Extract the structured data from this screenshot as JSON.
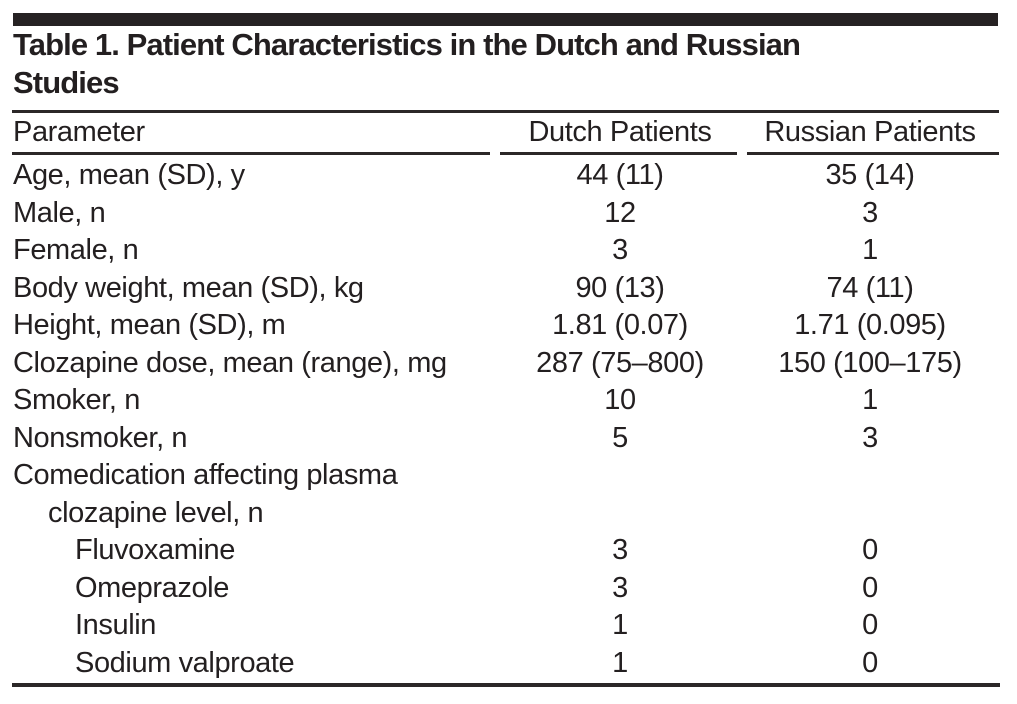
{
  "title": {
    "line1": "Table 1. Patient Characteristics in the Dutch and Russian",
    "line2": "Studies"
  },
  "columns": {
    "parameter": "Parameter",
    "dutch": "Dutch Patients",
    "russian": "Russian Patients"
  },
  "table": {
    "rows": [
      {
        "label": "Age, mean (SD), y",
        "indent": 0,
        "dutch": "44 (11)",
        "russian": "35 (14)"
      },
      {
        "label": "Male, n",
        "indent": 0,
        "dutch": "12",
        "russian": "3"
      },
      {
        "label": "Female, n",
        "indent": 0,
        "dutch": "3",
        "russian": "1"
      },
      {
        "label": "Body weight, mean (SD), kg",
        "indent": 0,
        "dutch": "90 (13)",
        "russian": "74 (11)"
      },
      {
        "label": "Height, mean (SD), m",
        "indent": 0,
        "dutch": "1.81 (0.07)",
        "russian": "1.71 (0.095)"
      },
      {
        "label": "Clozapine dose, mean (range), mg",
        "indent": 0,
        "dutch": "287 (75–800)",
        "russian": "150 (100–175)"
      },
      {
        "label": "Smoker, n",
        "indent": 0,
        "dutch": "10",
        "russian": "1"
      },
      {
        "label": "Nonsmoker, n",
        "indent": 0,
        "dutch": "5",
        "russian": "3"
      },
      {
        "label": "Comedication affecting plasma",
        "label_cont": "clozapine level, n",
        "indent": 0,
        "dutch": "",
        "russian": ""
      },
      {
        "label": "Fluvoxamine",
        "indent": 1,
        "dutch": "3",
        "russian": "0"
      },
      {
        "label": "Omeprazole",
        "indent": 1,
        "dutch": "3",
        "russian": "0"
      },
      {
        "label": "Insulin",
        "indent": 1,
        "dutch": "1",
        "russian": "0"
      },
      {
        "label": "Sodium valproate",
        "indent": 1,
        "dutch": "1",
        "russian": "0"
      }
    ]
  },
  "colors": {
    "ink": "#231f20",
    "background": "#ffffff"
  }
}
